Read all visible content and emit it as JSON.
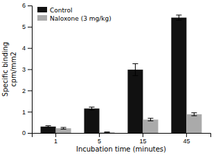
{
  "chart_data": {
    "type": "bar",
    "categories": [
      "1",
      "5",
      "15",
      "45"
    ],
    "series": [
      {
        "name": "Control",
        "color": "#111111",
        "values": [
          0.3,
          1.15,
          2.98,
          5.43
        ],
        "errors": [
          0.04,
          0.07,
          0.28,
          0.12
        ]
      },
      {
        "name": "Naloxone (3 mg/kg)",
        "color": "#aaaaaa",
        "values": [
          0.22,
          0.03,
          0.63,
          0.88
        ],
        "errors": [
          0.04,
          0.02,
          0.06,
          0.07
        ]
      }
    ],
    "xlabel": "Incubation time (minutes)",
    "ylabel": "Specific binding\ncpm/mm2",
    "ylim": [
      0,
      6
    ],
    "yticks": [
      0,
      1,
      2,
      3,
      4,
      5,
      6
    ],
    "grid": false,
    "legend": "upper left"
  }
}
